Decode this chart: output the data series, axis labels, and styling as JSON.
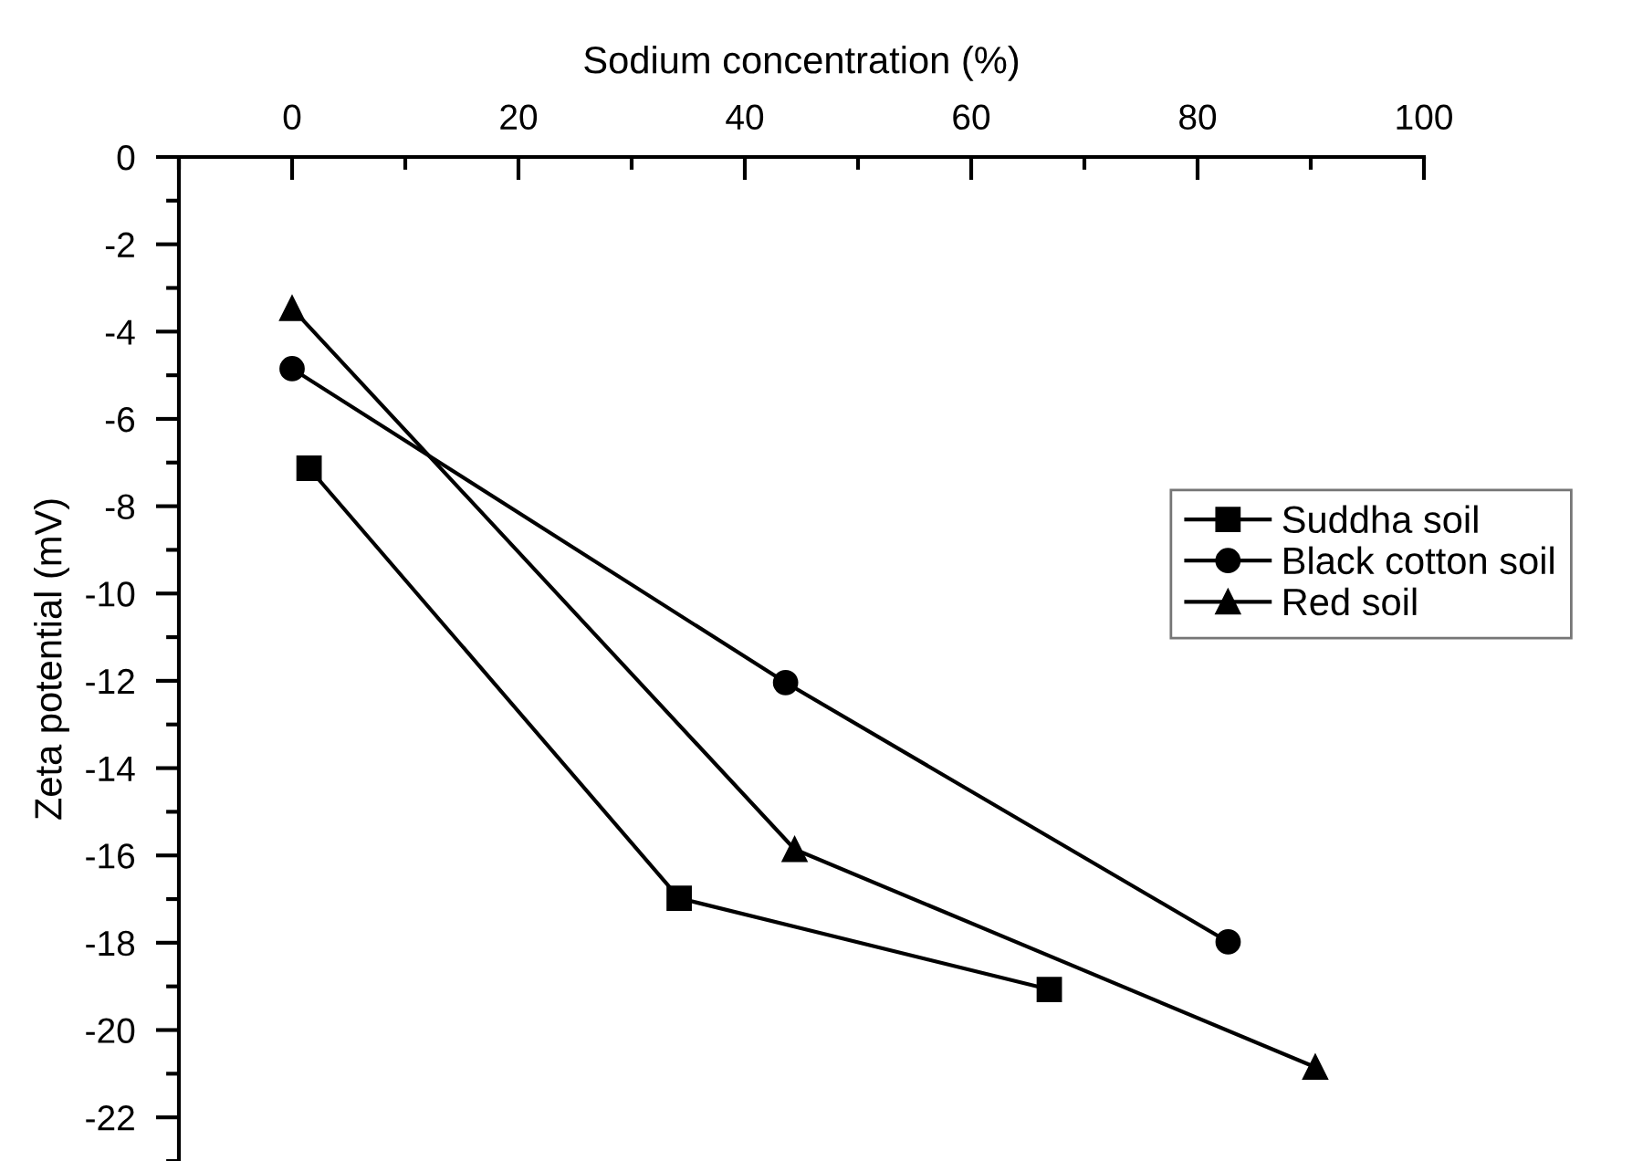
{
  "chart_data": {
    "type": "line",
    "xlabel": "Sodium concentration (%)",
    "ylabel": "Zeta potential (mV)",
    "xlim": [
      -10,
      100
    ],
    "xticks": [
      0,
      20,
      40,
      60,
      80,
      100
    ],
    "ylim": [
      -23,
      0
    ],
    "yticks": [
      0,
      -2,
      -4,
      -6,
      -8,
      -10,
      -12,
      -14,
      -16,
      -18,
      -20,
      -22
    ],
    "grid": false,
    "legend": "right",
    "line_style": "solid",
    "series": [
      {
        "name": "Suddha soil",
        "color": "#000000",
        "marker": "square",
        "x": [
          1.5,
          34.2,
          66.9
        ],
        "values": [
          -7.13,
          -16.98,
          -19.07
        ]
      },
      {
        "name": "Black cotton soil",
        "color": "#000000",
        "marker": "circle",
        "x": [
          0,
          43.6,
          82.7
        ],
        "values": [
          -4.85,
          -12.04,
          -17.98
        ]
      },
      {
        "name": "Red soil",
        "color": "#000000",
        "marker": "triangle",
        "x": [
          0,
          44.4,
          90.4
        ],
        "values": [
          -3.47,
          -15.86,
          -20.85
        ]
      }
    ]
  }
}
